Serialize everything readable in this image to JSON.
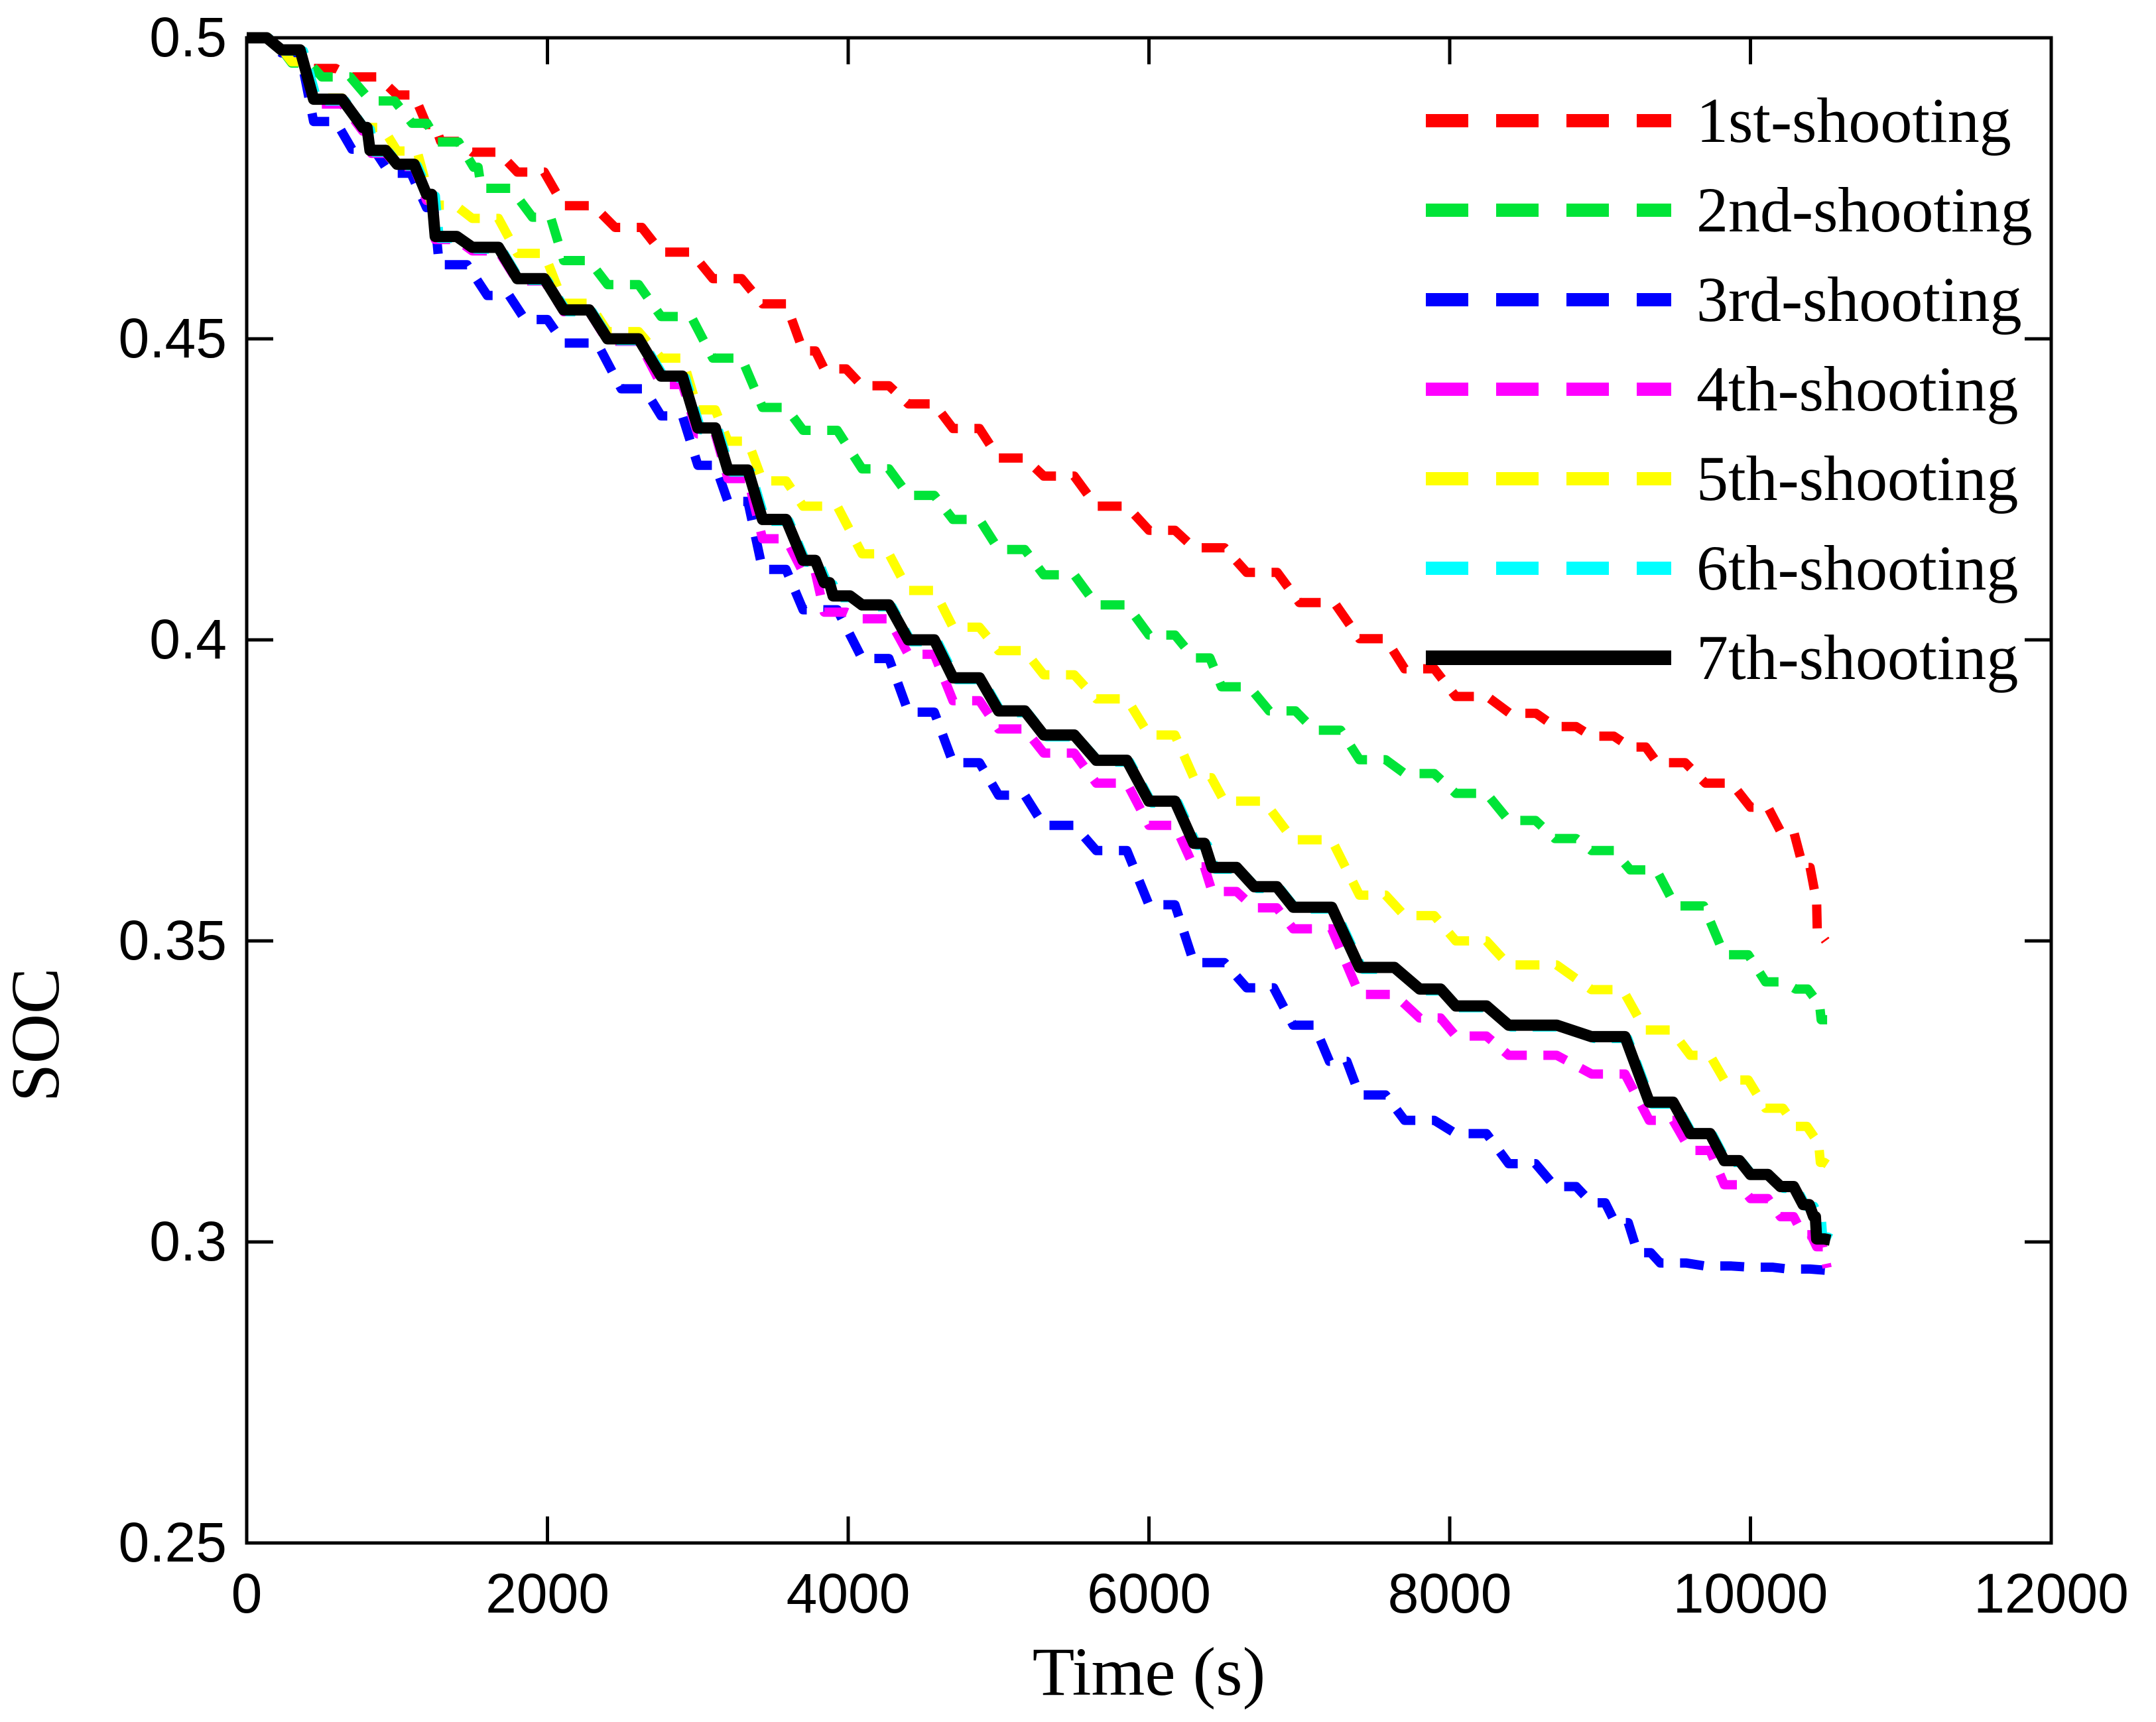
{
  "chart_data": {
    "type": "line",
    "title": "",
    "xlabel": "Time (s)",
    "ylabel": "SOC",
    "xlim": [
      0,
      12000
    ],
    "ylim": [
      0.25,
      0.5
    ],
    "grid": false,
    "legend_position": "top-right-inside",
    "x_ticks": [
      0,
      2000,
      4000,
      6000,
      8000,
      10000,
      12000
    ],
    "x_tick_labels": [
      "0",
      "2000",
      "4000",
      "6000",
      "8000",
      "10000",
      "12000"
    ],
    "y_ticks": [
      0.25,
      0.3,
      0.35,
      0.4,
      0.45,
      0.5
    ],
    "y_tick_labels": [
      "0.25",
      "0.3",
      "0.35",
      "0.4",
      "0.45",
      "0.5"
    ],
    "series": [
      {
        "name": "1st-shooting",
        "color": "#FF0000",
        "style": "dashed",
        "points": [
          [
            0,
            0.5
          ],
          [
            250,
            0.4975
          ],
          [
            445,
            0.4949
          ],
          [
            700,
            0.4935
          ],
          [
            1000,
            0.4905
          ],
          [
            1196,
            0.4856
          ],
          [
            1290,
            0.4828
          ],
          [
            1500,
            0.481
          ],
          [
            1800,
            0.4777
          ],
          [
            2108,
            0.4721
          ],
          [
            2450,
            0.4685
          ],
          [
            2756,
            0.4644
          ],
          [
            3100,
            0.46
          ],
          [
            3430,
            0.4558
          ],
          [
            3700,
            0.448
          ],
          [
            3841,
            0.445
          ],
          [
            4092,
            0.4422
          ],
          [
            4400,
            0.4392
          ],
          [
            4697,
            0.4351
          ],
          [
            5000,
            0.4302
          ],
          [
            5300,
            0.4272
          ],
          [
            5650,
            0.4222
          ],
          [
            6000,
            0.4182
          ],
          [
            6298,
            0.4153
          ],
          [
            6650,
            0.4112
          ],
          [
            7000,
            0.4062
          ],
          [
            7400,
            0.4002
          ],
          [
            7700,
            0.3952
          ],
          [
            8040,
            0.3906
          ],
          [
            8400,
            0.3878
          ],
          [
            8700,
            0.3856
          ],
          [
            8943,
            0.384
          ],
          [
            9200,
            0.3822
          ],
          [
            9379,
            0.3796
          ],
          [
            9700,
            0.3762
          ],
          [
            10000,
            0.3722
          ],
          [
            10200,
            0.3682
          ],
          [
            10350,
            0.3622
          ],
          [
            10430,
            0.3578
          ],
          [
            10445,
            0.3508
          ],
          [
            10500,
            0.35
          ]
        ]
      },
      {
        "name": "2nd-shooting",
        "color": "#00E438",
        "style": "dashed",
        "points": [
          [
            0,
            0.5
          ],
          [
            300,
            0.4958
          ],
          [
            500,
            0.4935
          ],
          [
            825,
            0.4895
          ],
          [
            1100,
            0.4858
          ],
          [
            1270,
            0.4827
          ],
          [
            1509,
            0.4785
          ],
          [
            1560,
            0.475
          ],
          [
            1900,
            0.4702
          ],
          [
            2108,
            0.463
          ],
          [
            2400,
            0.459
          ],
          [
            2756,
            0.4537
          ],
          [
            3100,
            0.4468
          ],
          [
            3430,
            0.4386
          ],
          [
            3700,
            0.4348
          ],
          [
            4092,
            0.4284
          ],
          [
            4400,
            0.424
          ],
          [
            4697,
            0.42
          ],
          [
            5000,
            0.415
          ],
          [
            5300,
            0.4108
          ],
          [
            5650,
            0.4058
          ],
          [
            6000,
            0.4008
          ],
          [
            6298,
            0.397
          ],
          [
            6483,
            0.3922
          ],
          [
            6800,
            0.3882
          ],
          [
            7100,
            0.385
          ],
          [
            7400,
            0.3801
          ],
          [
            7700,
            0.3778
          ],
          [
            8040,
            0.3745
          ],
          [
            8392,
            0.37
          ],
          [
            8700,
            0.367
          ],
          [
            8943,
            0.365
          ],
          [
            9200,
            0.3618
          ],
          [
            9500,
            0.3558
          ],
          [
            9826,
            0.3477
          ],
          [
            10100,
            0.3432
          ],
          [
            10300,
            0.342
          ],
          [
            10440,
            0.34
          ],
          [
            10470,
            0.3369
          ],
          [
            10510,
            0.3369
          ]
        ]
      },
      {
        "name": "3rd-shooting",
        "color": "#0000FF",
        "style": "dashed",
        "points": [
          [
            0,
            0.5
          ],
          [
            230,
            0.4975
          ],
          [
            445,
            0.4861
          ],
          [
            700,
            0.4815
          ],
          [
            950,
            0.4775
          ],
          [
            1196,
            0.4718
          ],
          [
            1280,
            0.4623
          ],
          [
            1600,
            0.4572
          ],
          [
            1850,
            0.4532
          ],
          [
            2108,
            0.4493
          ],
          [
            2491,
            0.4417
          ],
          [
            2756,
            0.4372
          ],
          [
            3000,
            0.429
          ],
          [
            3200,
            0.423
          ],
          [
            3430,
            0.4117
          ],
          [
            3700,
            0.405
          ],
          [
            4092,
            0.3969
          ],
          [
            4400,
            0.388
          ],
          [
            4697,
            0.3796
          ],
          [
            5000,
            0.3742
          ],
          [
            5300,
            0.3692
          ],
          [
            5650,
            0.365
          ],
          [
            6000,
            0.356
          ],
          [
            6298,
            0.3464
          ],
          [
            6650,
            0.3422
          ],
          [
            6959,
            0.336
          ],
          [
            7200,
            0.33
          ],
          [
            7400,
            0.3244
          ],
          [
            7700,
            0.3202
          ],
          [
            8040,
            0.318
          ],
          [
            8392,
            0.313
          ],
          [
            8700,
            0.3092
          ],
          [
            8943,
            0.3065
          ],
          [
            9100,
            0.3032
          ],
          [
            9250,
            0.2982
          ],
          [
            9400,
            0.2965
          ],
          [
            9700,
            0.296
          ],
          [
            10000,
            0.2958
          ],
          [
            10250,
            0.2955
          ],
          [
            10500,
            0.2953
          ]
        ]
      },
      {
        "name": "4th-shooting",
        "color": "#FF00FF",
        "style": "dashed",
        "points": [
          [
            0,
            0.5
          ],
          [
            230,
            0.4978
          ],
          [
            445,
            0.489
          ],
          [
            772,
            0.4845
          ],
          [
            830,
            0.4808
          ],
          [
            1000,
            0.4786
          ],
          [
            1196,
            0.473
          ],
          [
            1254,
            0.4665
          ],
          [
            1500,
            0.4646
          ],
          [
            1800,
            0.4596
          ],
          [
            2108,
            0.4545
          ],
          [
            2400,
            0.4496
          ],
          [
            2756,
            0.4424
          ],
          [
            3000,
            0.4342
          ],
          [
            3200,
            0.4268
          ],
          [
            3430,
            0.4168
          ],
          [
            3700,
            0.4112
          ],
          [
            3841,
            0.4046
          ],
          [
            4092,
            0.4035
          ],
          [
            4400,
            0.3976
          ],
          [
            4697,
            0.3899
          ],
          [
            5000,
            0.3852
          ],
          [
            5300,
            0.3812
          ],
          [
            5650,
            0.3762
          ],
          [
            6000,
            0.3692
          ],
          [
            6298,
            0.3623
          ],
          [
            6420,
            0.3582
          ],
          [
            6700,
            0.3555
          ],
          [
            6959,
            0.352
          ],
          [
            7400,
            0.3411
          ],
          [
            7800,
            0.3372
          ],
          [
            8040,
            0.3342
          ],
          [
            8392,
            0.331
          ],
          [
            8943,
            0.3279
          ],
          [
            9327,
            0.3202
          ],
          [
            9600,
            0.3152
          ],
          [
            9826,
            0.3095
          ],
          [
            10000,
            0.3072
          ],
          [
            10200,
            0.3042
          ],
          [
            10350,
            0.3012
          ],
          [
            10440,
            0.2992
          ],
          [
            10510,
            0.2957
          ]
        ]
      },
      {
        "name": "5th-shooting",
        "color": "#FFFF00",
        "style": "dashed",
        "points": [
          [
            0,
            0.5
          ],
          [
            300,
            0.496
          ],
          [
            445,
            0.49
          ],
          [
            772,
            0.4851
          ],
          [
            1000,
            0.4812
          ],
          [
            1230,
            0.4722
          ],
          [
            1500,
            0.47
          ],
          [
            1800,
            0.4642
          ],
          [
            2108,
            0.4559
          ],
          [
            2400,
            0.4512
          ],
          [
            2756,
            0.4468
          ],
          [
            3000,
            0.4382
          ],
          [
            3200,
            0.433
          ],
          [
            3430,
            0.4264
          ],
          [
            3700,
            0.4222
          ],
          [
            4092,
            0.4143
          ],
          [
            4400,
            0.4082
          ],
          [
            4697,
            0.4021
          ],
          [
            5000,
            0.3982
          ],
          [
            5300,
            0.3942
          ],
          [
            5650,
            0.3902
          ],
          [
            6000,
            0.3842
          ],
          [
            6298,
            0.3771
          ],
          [
            6500,
            0.3732
          ],
          [
            6959,
            0.3668
          ],
          [
            7400,
            0.3576
          ],
          [
            7700,
            0.3542
          ],
          [
            8040,
            0.35
          ],
          [
            8392,
            0.346
          ],
          [
            8943,
            0.3419
          ],
          [
            9300,
            0.3352
          ],
          [
            9600,
            0.331
          ],
          [
            9826,
            0.3269
          ],
          [
            10100,
            0.3222
          ],
          [
            10300,
            0.3192
          ],
          [
            10430,
            0.3172
          ],
          [
            10465,
            0.3132
          ],
          [
            10510,
            0.3129
          ]
        ]
      },
      {
        "name": "6th-shooting",
        "color": "#00FFFF",
        "style": "dashed",
        "points": [
          [
            0,
            0.5
          ],
          [
            250,
            0.4978
          ],
          [
            470,
            0.4895
          ],
          [
            790,
            0.4848
          ],
          [
            845,
            0.481
          ],
          [
            1020,
            0.4787
          ],
          [
            1220,
            0.4737
          ],
          [
            1280,
            0.4667
          ],
          [
            1520,
            0.4649
          ],
          [
            1820,
            0.4597
          ],
          [
            2130,
            0.4545
          ],
          [
            2420,
            0.4497
          ],
          [
            2780,
            0.4435
          ],
          [
            3020,
            0.4349
          ],
          [
            3220,
            0.4279
          ],
          [
            3450,
            0.4197
          ],
          [
            3720,
            0.4129
          ],
          [
            3865,
            0.4092
          ],
          [
            3925,
            0.407
          ],
          [
            4115,
            0.4055
          ],
          [
            4420,
            0.3997
          ],
          [
            4720,
            0.3934
          ],
          [
            5020,
            0.3879
          ],
          [
            5320,
            0.3839
          ],
          [
            5670,
            0.3797
          ],
          [
            6020,
            0.3729
          ],
          [
            6320,
            0.3659
          ],
          [
            6440,
            0.3619
          ],
          [
            6720,
            0.3587
          ],
          [
            6980,
            0.3553
          ],
          [
            7420,
            0.3453
          ],
          [
            7820,
            0.3417
          ],
          [
            8060,
            0.3389
          ],
          [
            8410,
            0.3357
          ],
          [
            8960,
            0.3338
          ],
          [
            9345,
            0.3229
          ],
          [
            9620,
            0.3177
          ],
          [
            9845,
            0.3132
          ],
          [
            10020,
            0.3109
          ],
          [
            10220,
            0.3089
          ],
          [
            10370,
            0.3059
          ],
          [
            10460,
            0.3039
          ],
          [
            10480,
            0.3008
          ],
          [
            10540,
            0.3005
          ]
        ]
      },
      {
        "name": "7th-shooting",
        "color": "#000000",
        "style": "solid",
        "points": [
          [
            0,
            0.5
          ],
          [
            230,
            0.498
          ],
          [
            445,
            0.4898
          ],
          [
            772,
            0.4851
          ],
          [
            820,
            0.4813
          ],
          [
            1000,
            0.479
          ],
          [
            1196,
            0.474
          ],
          [
            1254,
            0.467
          ],
          [
            1500,
            0.4652
          ],
          [
            1800,
            0.46
          ],
          [
            2108,
            0.4548
          ],
          [
            2400,
            0.45
          ],
          [
            2756,
            0.4438
          ],
          [
            3000,
            0.4352
          ],
          [
            3200,
            0.4282
          ],
          [
            3430,
            0.42
          ],
          [
            3700,
            0.4132
          ],
          [
            3841,
            0.4095
          ],
          [
            3900,
            0.4073
          ],
          [
            4092,
            0.4058
          ],
          [
            4400,
            0.4
          ],
          [
            4697,
            0.3937
          ],
          [
            5000,
            0.3882
          ],
          [
            5300,
            0.3842
          ],
          [
            5650,
            0.38
          ],
          [
            6000,
            0.3732
          ],
          [
            6298,
            0.3662
          ],
          [
            6420,
            0.3622
          ],
          [
            6700,
            0.359
          ],
          [
            6959,
            0.3556
          ],
          [
            7400,
            0.3456
          ],
          [
            7800,
            0.342
          ],
          [
            8040,
            0.3392
          ],
          [
            8392,
            0.336
          ],
          [
            8943,
            0.3341
          ],
          [
            9327,
            0.3232
          ],
          [
            9600,
            0.318
          ],
          [
            9826,
            0.3135
          ],
          [
            10000,
            0.3112
          ],
          [
            10200,
            0.3092
          ],
          [
            10350,
            0.3062
          ],
          [
            10420,
            0.3042
          ],
          [
            10440,
            0.3005
          ],
          [
            10530,
            0.3003
          ]
        ]
      }
    ],
    "legend_entries": [
      "1st-shooting",
      "2nd-shooting",
      "3rd-shooting",
      "4th-shooting",
      "5th-shooting",
      "6th-shooting",
      "7th-shooting"
    ]
  },
  "axis_color": "#000000",
  "background_color": "#FFFFFF"
}
